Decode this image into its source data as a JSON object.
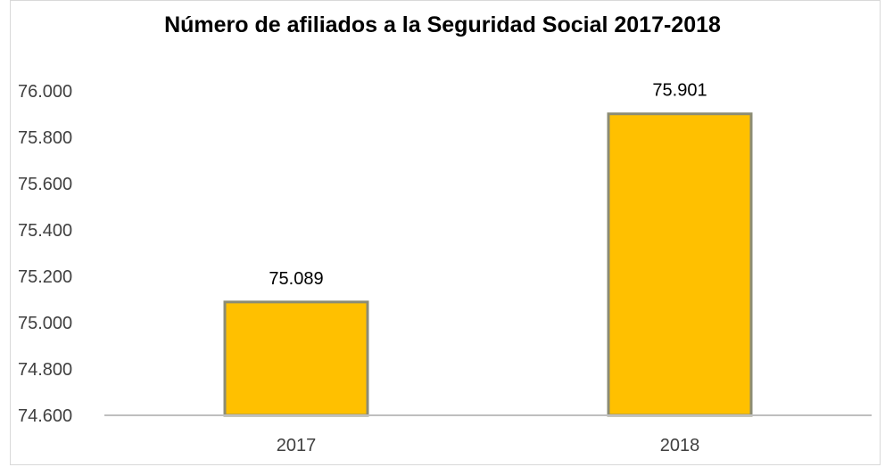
{
  "chart_data": {
    "type": "bar",
    "title": "Número de afiliados a la Seguridad Social 2017-2018",
    "categories": [
      "2017",
      "2018"
    ],
    "values": [
      75089,
      75901
    ],
    "value_labels": [
      "75.089",
      "75.901"
    ],
    "ylim": [
      74600,
      76000
    ],
    "yticks": [
      74600,
      74800,
      75000,
      75200,
      75400,
      75600,
      75800,
      76000
    ],
    "ytick_labels": [
      "74.600",
      "74.800",
      "75.000",
      "75.200",
      "75.400",
      "75.600",
      "75.800",
      "76.000"
    ],
    "grid": false,
    "legend": "none",
    "colors": {
      "bar": "#ffc000",
      "bar_edge": "#8c8c74",
      "axis": "#bfbfbf",
      "text": "#404040"
    }
  }
}
